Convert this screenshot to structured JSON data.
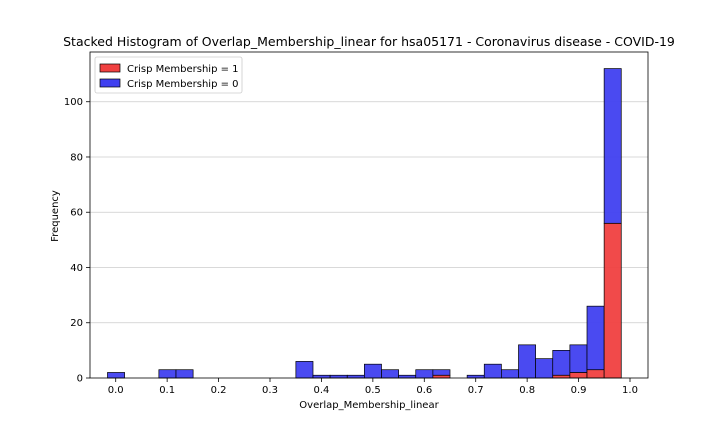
{
  "chart_data": {
    "type": "bar",
    "stacked": true,
    "title": "Stacked Histogram of Overlap_Membership_linear for hsa05171 - Coronavirus disease - COVID-19",
    "xlabel": "Overlap_Membership_linear",
    "ylabel": "Frequency",
    "xlim": [
      -0.05,
      1.035
    ],
    "ylim": [
      0,
      118
    ],
    "x_ticks": [
      "0.0",
      "0.1",
      "0.2",
      "0.3",
      "0.4",
      "0.5",
      "0.6",
      "0.7",
      "0.8",
      "0.9",
      "1.0"
    ],
    "x_tick_values": [
      0.0,
      0.1,
      0.2,
      0.3,
      0.4,
      0.5,
      0.6,
      0.7,
      0.8,
      0.9,
      1.0
    ],
    "y_ticks": [
      "0",
      "20",
      "40",
      "60",
      "80",
      "100"
    ],
    "y_tick_values": [
      0,
      20,
      40,
      60,
      80,
      100
    ],
    "grid": "horizontal",
    "legend_position": "top-left",
    "bin_start": -0.016,
    "bin_width": 0.0333,
    "series": [
      {
        "name": "Crisp Membership = 1",
        "color": "#f04040",
        "values": [
          0,
          0,
          0,
          0,
          0,
          0,
          0,
          0,
          0,
          0,
          0,
          0,
          0,
          0,
          0,
          0,
          0,
          0,
          0,
          1,
          0,
          0,
          0,
          0,
          0,
          0,
          1,
          2,
          3,
          56
        ]
      },
      {
        "name": "Crisp Membership = 0",
        "color": "#4040f0",
        "values": [
          2,
          0,
          0,
          3,
          3,
          0,
          0,
          0,
          0,
          0,
          0,
          6,
          1,
          1,
          1,
          5,
          3,
          1,
          3,
          2,
          0,
          1,
          5,
          3,
          12,
          7,
          9,
          10,
          23,
          56
        ]
      }
    ]
  }
}
